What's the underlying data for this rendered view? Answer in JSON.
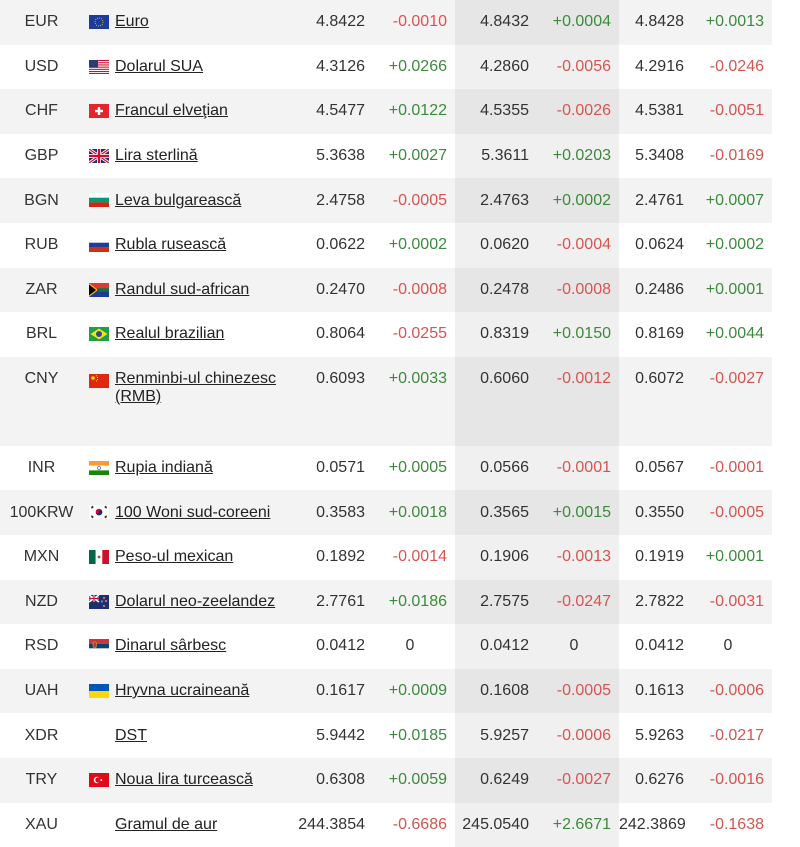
{
  "rows": [
    {
      "code": "EUR",
      "flag": "eu-flag-icon",
      "name": "Euro",
      "v1": "4.8422",
      "d1": "-0.0010",
      "v2": "4.8432",
      "d2": "+0.0004",
      "v3": "4.8428",
      "d3": "+0.0013"
    },
    {
      "code": "USD",
      "flag": "us-flag-icon",
      "name": "Dolarul SUA",
      "v1": "4.3126",
      "d1": "+0.0266",
      "v2": "4.2860",
      "d2": "-0.0056",
      "v3": "4.2916",
      "d3": "-0.0246"
    },
    {
      "code": "CHF",
      "flag": "ch-flag-icon",
      "name": "Francul elveţian",
      "v1": "4.5477",
      "d1": "+0.0122",
      "v2": "4.5355",
      "d2": "-0.0026",
      "v3": "4.5381",
      "d3": "-0.0051"
    },
    {
      "code": "GBP",
      "flag": "gb-flag-icon",
      "name": "Lira sterlină",
      "v1": "5.3638",
      "d1": "+0.0027",
      "v2": "5.3611",
      "d2": "+0.0203",
      "v3": "5.3408",
      "d3": "-0.0169"
    },
    {
      "code": "BGN",
      "flag": "bg-flag-icon",
      "name": "Leva bulgarească",
      "v1": "2.4758",
      "d1": "-0.0005",
      "v2": "2.4763",
      "d2": "+0.0002",
      "v3": "2.4761",
      "d3": "+0.0007"
    },
    {
      "code": "RUB",
      "flag": "ru-flag-icon",
      "name": "Rubla rusească",
      "v1": "0.0622",
      "d1": "+0.0002",
      "v2": "0.0620",
      "d2": "-0.0004",
      "v3": "0.0624",
      "d3": "+0.0002"
    },
    {
      "code": "ZAR",
      "flag": "za-flag-icon",
      "name": "Randul sud-african",
      "v1": "0.2470",
      "d1": "-0.0008",
      "v2": "0.2478",
      "d2": "-0.0008",
      "v3": "0.2486",
      "d3": "+0.0001"
    },
    {
      "code": "BRL",
      "flag": "br-flag-icon",
      "name": "Realul brazilian",
      "v1": "0.8064",
      "d1": "-0.0255",
      "v2": "0.8319",
      "d2": "+0.0150",
      "v3": "0.8169",
      "d3": "+0.0044"
    },
    {
      "code": "CNY",
      "flag": "cn-flag-icon",
      "name": "Renminbi-ul chinezesc (RMB)",
      "v1": "0.6093",
      "d1": "+0.0033",
      "v2": "0.6060",
      "d2": "-0.0012",
      "v3": "0.6072",
      "d3": "-0.0027"
    },
    {
      "code": "INR",
      "flag": "in-flag-icon",
      "name": "Rupia indiană",
      "v1": "0.0571",
      "d1": "+0.0005",
      "v2": "0.0566",
      "d2": "-0.0001",
      "v3": "0.0567",
      "d3": "-0.0001"
    },
    {
      "code": "100KRW",
      "flag": "kr-flag-icon",
      "name": "100 Woni sud-coreeni",
      "v1": "0.3583",
      "d1": "+0.0018",
      "v2": "0.3565",
      "d2": "+0.0015",
      "v3": "0.3550",
      "d3": "-0.0005"
    },
    {
      "code": "MXN",
      "flag": "mx-flag-icon",
      "name": "Peso-ul mexican",
      "v1": "0.1892",
      "d1": "-0.0014",
      "v2": "0.1906",
      "d2": "-0.0013",
      "v3": "0.1919",
      "d3": "+0.0001"
    },
    {
      "code": "NZD",
      "flag": "nz-flag-icon",
      "name": "Dolarul neo-zeelandez",
      "v1": "2.7761",
      "d1": "+0.0186",
      "v2": "2.7575",
      "d2": "-0.0247",
      "v3": "2.7822",
      "d3": "-0.0031"
    },
    {
      "code": "RSD",
      "flag": "rs-flag-icon",
      "name": "Dinarul sârbesc",
      "v1": "0.0412",
      "d1": "0",
      "v2": "0.0412",
      "d2": "0",
      "v3": "0.0412",
      "d3": "0"
    },
    {
      "code": "UAH",
      "flag": "ua-flag-icon",
      "name": "Hryvna ucraineană",
      "v1": "0.1617",
      "d1": "+0.0009",
      "v2": "0.1608",
      "d2": "-0.0005",
      "v3": "0.1613",
      "d3": "-0.0006"
    },
    {
      "code": "XDR",
      "flag": "",
      "name": "DST",
      "v1": "5.9442",
      "d1": "+0.0185",
      "v2": "5.9257",
      "d2": "-0.0006",
      "v3": "5.9263",
      "d3": "-0.0217"
    },
    {
      "code": "TRY",
      "flag": "tr-flag-icon",
      "name": "Noua lira turcească",
      "v1": "0.6308",
      "d1": "+0.0059",
      "v2": "0.6249",
      "d2": "-0.0027",
      "v3": "0.6276",
      "d3": "-0.0016"
    },
    {
      "code": "XAU",
      "flag": "",
      "name": "Gramul de aur",
      "v1": "244.3854",
      "d1": "-0.6686",
      "v2": "245.0540",
      "d2": "+2.6671",
      "v3": "242.3869",
      "d3": "-0.1638"
    }
  ],
  "colors": {
    "positive": "#3c8a3c",
    "negative": "#d9534f",
    "highlight_column": "#e6e6e6"
  }
}
